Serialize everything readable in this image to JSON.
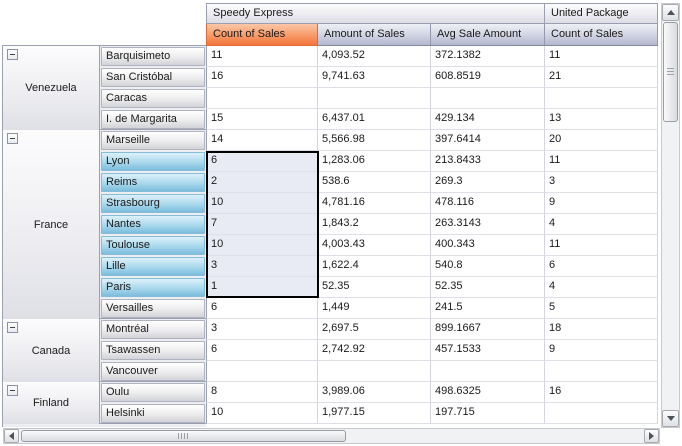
{
  "pivot": {
    "column_bands": [
      {
        "label": "Speedy Express"
      },
      {
        "label": "United Package"
      }
    ],
    "column_fields": [
      "Count of Sales",
      "Amount of Sales",
      "Avg Sale Amount",
      "Count of Sales"
    ],
    "groups": [
      {
        "country": "Venezuela",
        "expanded": true,
        "rows": [
          {
            "city": "Barquisimeto",
            "selected": false,
            "values": [
              "11",
              "4,093.52",
              "372.1382",
              "11"
            ]
          },
          {
            "city": "San Cristóbal",
            "selected": false,
            "values": [
              "16",
              "9,741.63",
              "608.8519",
              "21"
            ]
          },
          {
            "city": "Caracas",
            "selected": false,
            "values": [
              "",
              "",
              "",
              ""
            ]
          },
          {
            "city": "I. de Margarita",
            "selected": false,
            "values": [
              "15",
              "6,437.01",
              "429.134",
              "13"
            ]
          }
        ]
      },
      {
        "country": "France",
        "expanded": true,
        "rows": [
          {
            "city": "Marseille",
            "selected": false,
            "values": [
              "14",
              "5,566.98",
              "397.6414",
              "20"
            ]
          },
          {
            "city": "Lyon",
            "selected": true,
            "values": [
              "6",
              "1,283.06",
              "213.8433",
              "11"
            ]
          },
          {
            "city": "Reims",
            "selected": true,
            "values": [
              "2",
              "538.6",
              "269.3",
              "3"
            ]
          },
          {
            "city": "Strasbourg",
            "selected": true,
            "values": [
              "10",
              "4,781.16",
              "478.116",
              "9"
            ]
          },
          {
            "city": "Nantes",
            "selected": true,
            "values": [
              "7",
              "1,843.2",
              "263.3143",
              "4"
            ]
          },
          {
            "city": "Toulouse",
            "selected": true,
            "values": [
              "10",
              "4,003.43",
              "400.343",
              "11"
            ]
          },
          {
            "city": "Lille",
            "selected": true,
            "values": [
              "3",
              "1,622.4",
              "540.8",
              "6"
            ]
          },
          {
            "city": "Paris",
            "selected": true,
            "values": [
              "1",
              "52.35",
              "52.35",
              "4"
            ]
          },
          {
            "city": "Versailles",
            "selected": false,
            "values": [
              "6",
              "1,449",
              "241.5",
              "5"
            ]
          }
        ]
      },
      {
        "country": "Canada",
        "expanded": true,
        "rows": [
          {
            "city": "Montréal",
            "selected": false,
            "values": [
              "3",
              "2,697.5",
              "899.1667",
              "18"
            ]
          },
          {
            "city": "Tsawassen",
            "selected": false,
            "values": [
              "6",
              "2,742.92",
              "457.1533",
              "9"
            ]
          },
          {
            "city": "Vancouver",
            "selected": false,
            "values": [
              "",
              "",
              "",
              ""
            ]
          }
        ]
      },
      {
        "country": "Finland",
        "expanded": true,
        "rows": [
          {
            "city": "Oulu",
            "selected": false,
            "values": [
              "8",
              "3,989.06",
              "498.6325",
              "16"
            ]
          },
          {
            "city": "Helsinki",
            "selected": false,
            "values": [
              "10",
              "1,977.15",
              "197.715",
              ""
            ]
          }
        ]
      }
    ],
    "selection": {
      "column_field": "Count of Sales",
      "from_city": "Lyon",
      "to_city": "Paris"
    },
    "colors": {
      "highlighted_field_header": "#f3743c",
      "selected_row_header": "#7cbcdc",
      "selection_fill": "#e8ebf4",
      "selection_border": "#000000",
      "field_header": "#b4b7cf",
      "grid_line": "#d3d4dc"
    }
  }
}
